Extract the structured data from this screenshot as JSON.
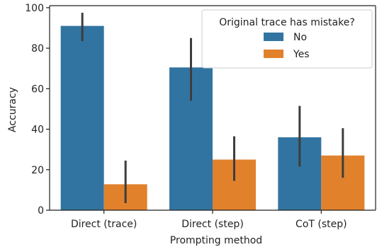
{
  "chart_data": {
    "type": "bar",
    "title": "",
    "xlabel": "Prompting method",
    "ylabel": "Accuracy",
    "categories": [
      "Direct (trace)",
      "Direct (step)",
      "CoT (step)"
    ],
    "ylim": [
      0,
      101
    ],
    "yticks": [
      0,
      20,
      40,
      60,
      80,
      100
    ],
    "grid": false,
    "legend": {
      "title": "Original trace has mistake?",
      "placement": "top-right"
    },
    "series": [
      {
        "name": "No",
        "color": "#3274a1",
        "values": [
          91,
          70.5,
          36
        ],
        "error_low": [
          83.5,
          54,
          21.5
        ],
        "error_high": [
          97.5,
          85,
          51.5
        ]
      },
      {
        "name": "Yes",
        "color": "#e1812c",
        "values": [
          12.8,
          25,
          27
        ],
        "error_low": [
          3.5,
          14.5,
          16
        ],
        "error_high": [
          24.5,
          36.5,
          40.5
        ]
      }
    ]
  }
}
